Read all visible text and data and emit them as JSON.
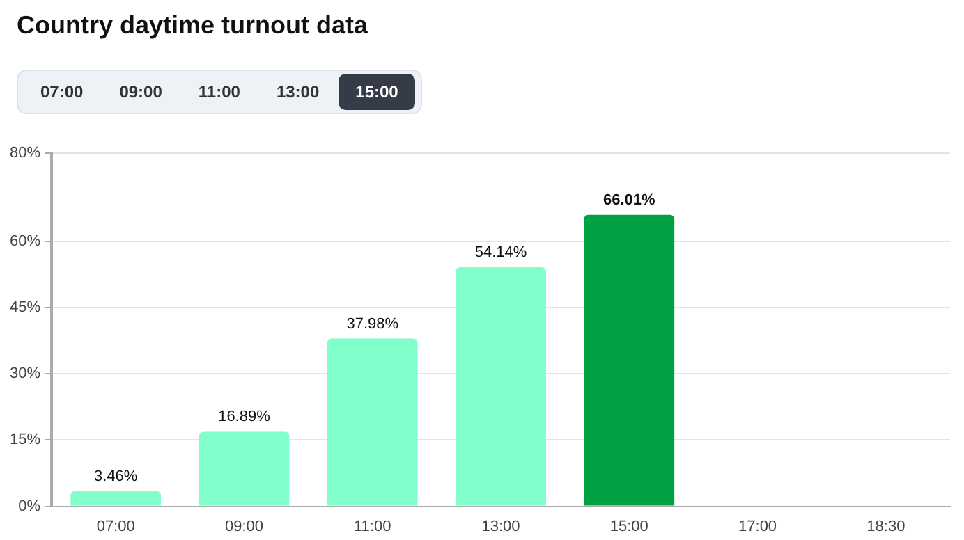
{
  "chart_data": {
    "type": "bar",
    "title": "Country daytime turnout data",
    "categories": [
      "07:00",
      "09:00",
      "11:00",
      "13:00",
      "15:00",
      "17:00",
      "18:30"
    ],
    "values": [
      3.46,
      16.89,
      37.98,
      54.14,
      66.01,
      null,
      null
    ],
    "colors": [
      "#80ffca",
      "#80ffca",
      "#80ffca",
      "#80ffca",
      "#00a142",
      "#80ffca",
      "#80ffca"
    ],
    "value_labels": [
      "3.46%",
      "16.89%",
      "37.98%",
      "54.14%",
      "66.01%",
      null,
      null
    ],
    "ylim": [
      0,
      80
    ],
    "yticks": [
      {
        "value": 0,
        "label": "0%"
      },
      {
        "value": 15,
        "label": "15%"
      },
      {
        "value": 30,
        "label": "30%"
      },
      {
        "value": 45,
        "label": "45%"
      },
      {
        "value": 60,
        "label": "60%"
      },
      {
        "value": 80,
        "label": "80%"
      }
    ],
    "grid": "y",
    "legend": false
  }
}
